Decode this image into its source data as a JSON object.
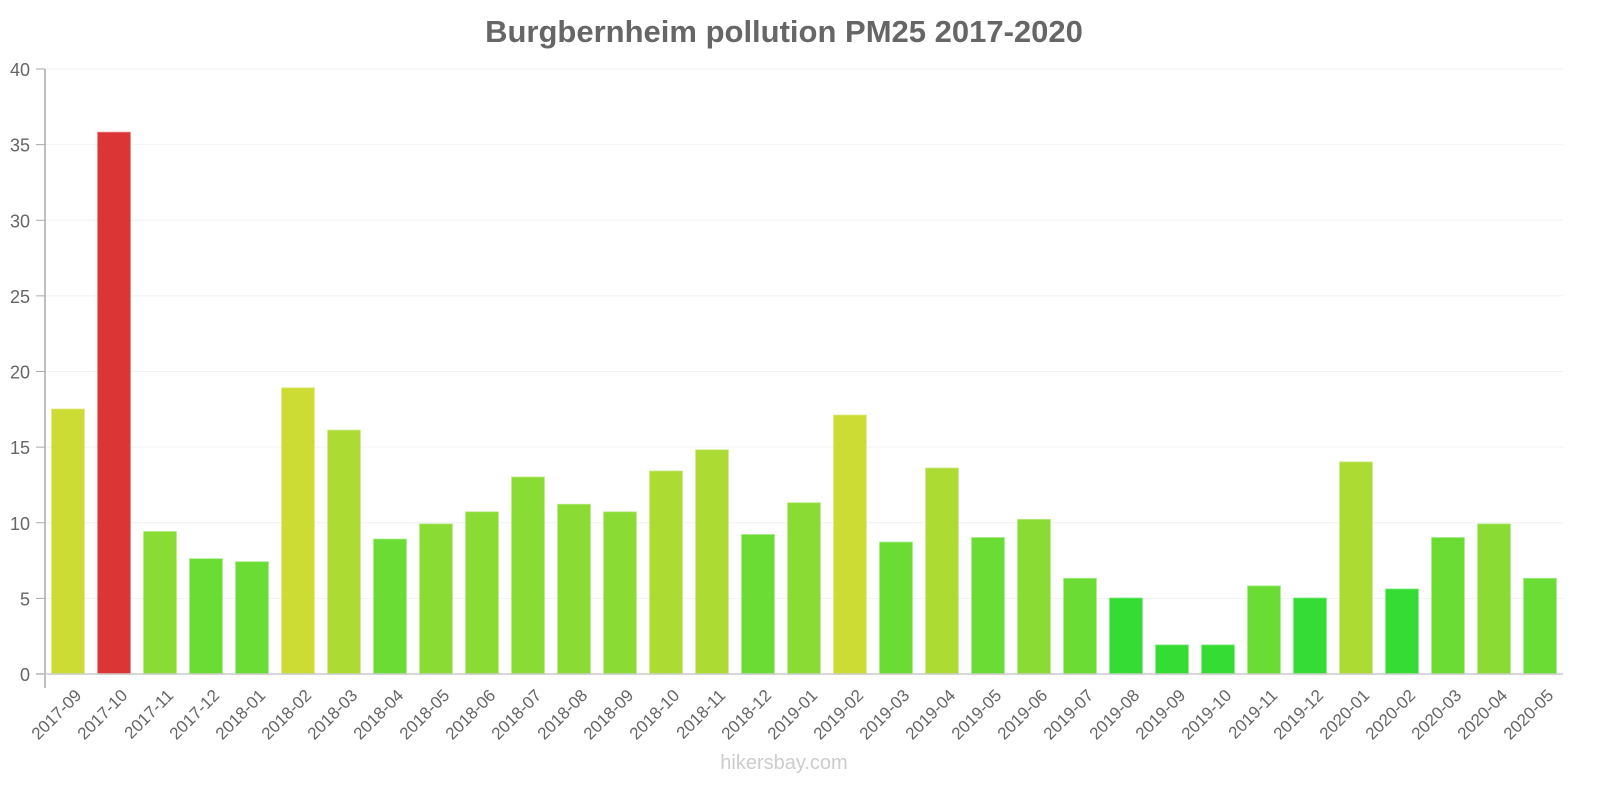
{
  "chart_data": {
    "type": "bar",
    "title": "Burgbernheim pollution PM25 2017-2020",
    "xlabel": "",
    "ylabel": "",
    "ylim": [
      0,
      40
    ],
    "yticks": [
      0,
      5,
      10,
      15,
      20,
      25,
      30,
      35,
      40
    ],
    "grid": true,
    "legend": "none",
    "categories": [
      "2017-09",
      "2017-10",
      "2017-11",
      "2017-12",
      "2018-01",
      "2018-02",
      "2018-03",
      "2018-04",
      "2018-05",
      "2018-06",
      "2018-07",
      "2018-08",
      "2018-09",
      "2018-10",
      "2018-11",
      "2018-12",
      "2019-01",
      "2019-02",
      "2019-03",
      "2019-04",
      "2019-05",
      "2019-06",
      "2019-07",
      "2019-08",
      "2019-09",
      "2019-10",
      "2019-11",
      "2019-12",
      "2020-01",
      "2020-02",
      "2020-03",
      "2020-04",
      "2020-05"
    ],
    "values": [
      17.5,
      35.8,
      9.4,
      7.6,
      7.4,
      18.9,
      16.1,
      8.9,
      9.9,
      10.7,
      13.0,
      11.2,
      10.7,
      13.4,
      14.8,
      9.2,
      11.3,
      17.1,
      8.7,
      13.6,
      9.0,
      10.2,
      6.3,
      5.0,
      1.9,
      1.9,
      5.8,
      5.0,
      14.0,
      5.6,
      9.0,
      9.9,
      6.3
    ],
    "colors": [
      "#cddc34",
      "#dc3535",
      "#8adc34",
      "#6bdc34",
      "#6bdc34",
      "#cddc34",
      "#acdc34",
      "#6bdc34",
      "#8adc34",
      "#8adc34",
      "#8adc34",
      "#8adc34",
      "#8adc34",
      "#acdc34",
      "#acdc34",
      "#6bdc34",
      "#8adc34",
      "#cddc34",
      "#6bdc34",
      "#acdc34",
      "#6bdc34",
      "#8adc34",
      "#6bdc34",
      "#34dc34",
      "#34dc34",
      "#34dc34",
      "#6bdc34",
      "#34dc34",
      "#acdc34",
      "#34dc34",
      "#6bdc34",
      "#8adc34",
      "#6bdc34"
    ]
  },
  "watermark": "hikersbay.com",
  "style": {
    "text_color": "#666666",
    "axis_color": "#aaaaaa",
    "grid_color": "#f2f2f2"
  }
}
